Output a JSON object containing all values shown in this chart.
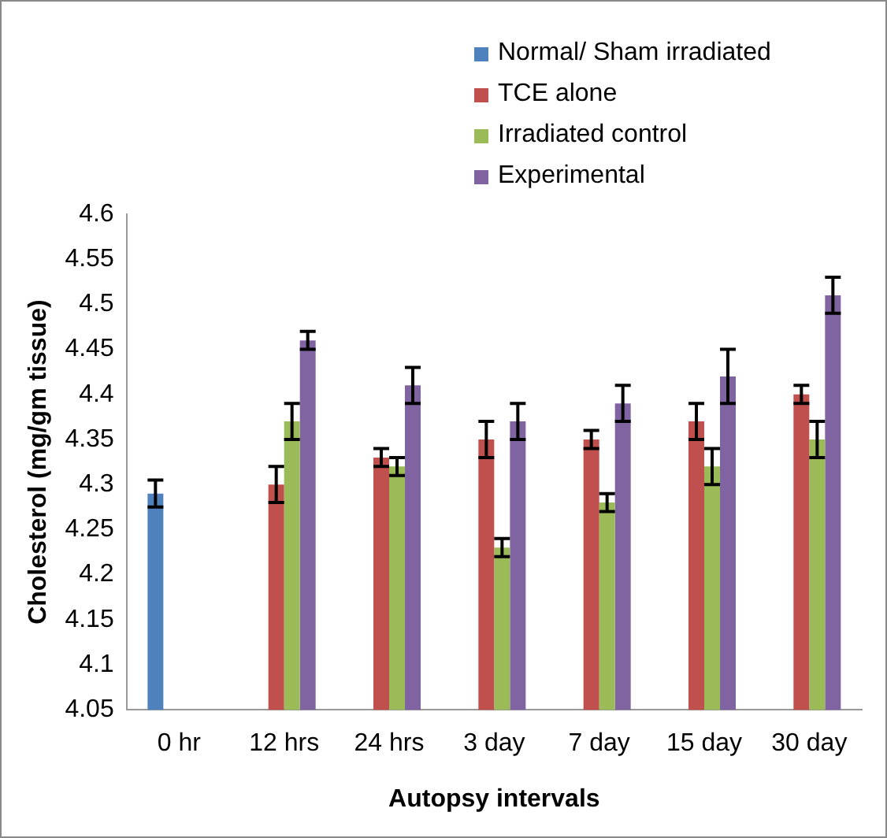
{
  "chart_data": {
    "type": "bar",
    "xlabel": "Autopsy intervals",
    "ylabel": "Cholesterol (mg/gm tissue)",
    "categories": [
      "0 hr",
      "12 hrs",
      "24 hrs",
      "3 day",
      "7 day",
      "15 day",
      "30 day"
    ],
    "series": [
      {
        "name": "Normal/ Sham irradiated",
        "color": "#4f81bd",
        "values": [
          4.29,
          null,
          null,
          null,
          null,
          null,
          null
        ],
        "errors": [
          0.015,
          null,
          null,
          null,
          null,
          null,
          null
        ]
      },
      {
        "name": "TCE alone",
        "color": "#c0504d",
        "values": [
          null,
          4.3,
          4.33,
          4.35,
          4.35,
          4.37,
          4.4
        ],
        "errors": [
          null,
          0.02,
          0.01,
          0.02,
          0.01,
          0.02,
          0.01
        ]
      },
      {
        "name": "Irradiated control",
        "color": "#9bbb59",
        "values": [
          null,
          4.37,
          4.32,
          4.23,
          4.28,
          4.32,
          4.35
        ],
        "errors": [
          null,
          0.02,
          0.01,
          0.01,
          0.01,
          0.02,
          0.02
        ]
      },
      {
        "name": "Experimental",
        "color": "#8064a2",
        "values": [
          null,
          4.46,
          4.41,
          4.37,
          4.39,
          4.42,
          4.51
        ],
        "errors": [
          null,
          0.01,
          0.02,
          0.02,
          0.02,
          0.03,
          0.02
        ]
      }
    ],
    "ylim": [
      4.05,
      4.6
    ],
    "yticks": [
      4.05,
      4.1,
      4.15,
      4.2,
      4.25,
      4.3,
      4.35,
      4.4,
      4.45,
      4.5,
      4.55,
      4.6
    ],
    "grid": false,
    "legend": "top right"
  }
}
